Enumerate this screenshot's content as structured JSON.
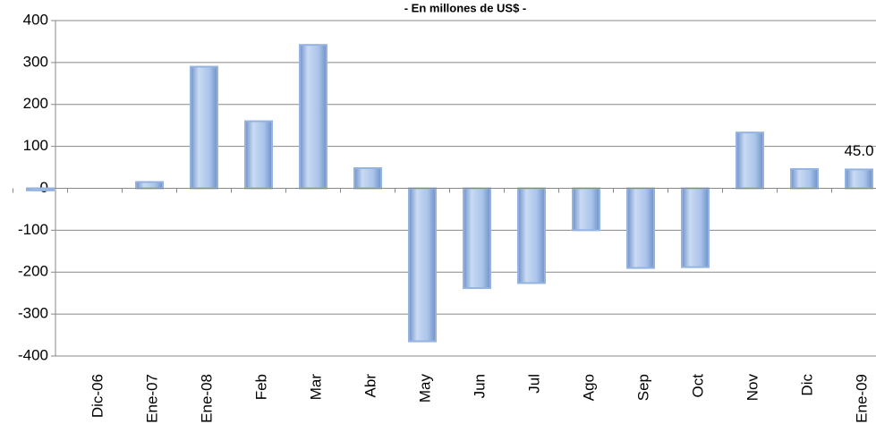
{
  "chart_data": {
    "type": "bar",
    "subtitle": "- En millones de US$ -",
    "categories": [
      null,
      "Dic-06",
      "Ene-07",
      "Ene-08",
      "Feb",
      "Mar",
      "Abr",
      "May",
      "Jun",
      "Jul",
      "Ago",
      "Sep",
      "Oct",
      "Nov",
      "Dic",
      "Ene-09"
    ],
    "values": [
      -5,
      0,
      15,
      290,
      160,
      342,
      48,
      -365,
      -238,
      -226,
      -100,
      -190,
      -188,
      133,
      46,
      45
    ],
    "value_labels": [
      null,
      null,
      null,
      null,
      null,
      null,
      null,
      null,
      null,
      null,
      null,
      null,
      null,
      null,
      null,
      "45.0"
    ],
    "color": "#95b3e0",
    "ylim": [
      -400,
      400
    ],
    "yticks": [
      -400,
      -300,
      -200,
      -100,
      0,
      100,
      200,
      300,
      400
    ],
    "grid": true
  }
}
